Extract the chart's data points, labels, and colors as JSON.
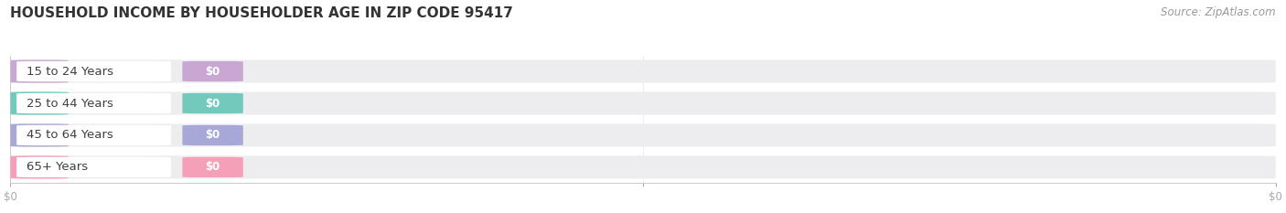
{
  "title": "HOUSEHOLD INCOME BY HOUSEHOLDER AGE IN ZIP CODE 95417",
  "source": "Source: ZipAtlas.com",
  "categories": [
    "15 to 24 Years",
    "25 to 44 Years",
    "45 to 64 Years",
    "65+ Years"
  ],
  "values": [
    0,
    0,
    0,
    0
  ],
  "bar_colors": [
    "#c8a8d2",
    "#72c9bc",
    "#a8a8d8",
    "#f4a0b8"
  ],
  "bg_color": "#ffffff",
  "bar_bg_color": "#ededf0",
  "title_fontsize": 11,
  "source_fontsize": 8.5,
  "xlim_max": 1.0
}
